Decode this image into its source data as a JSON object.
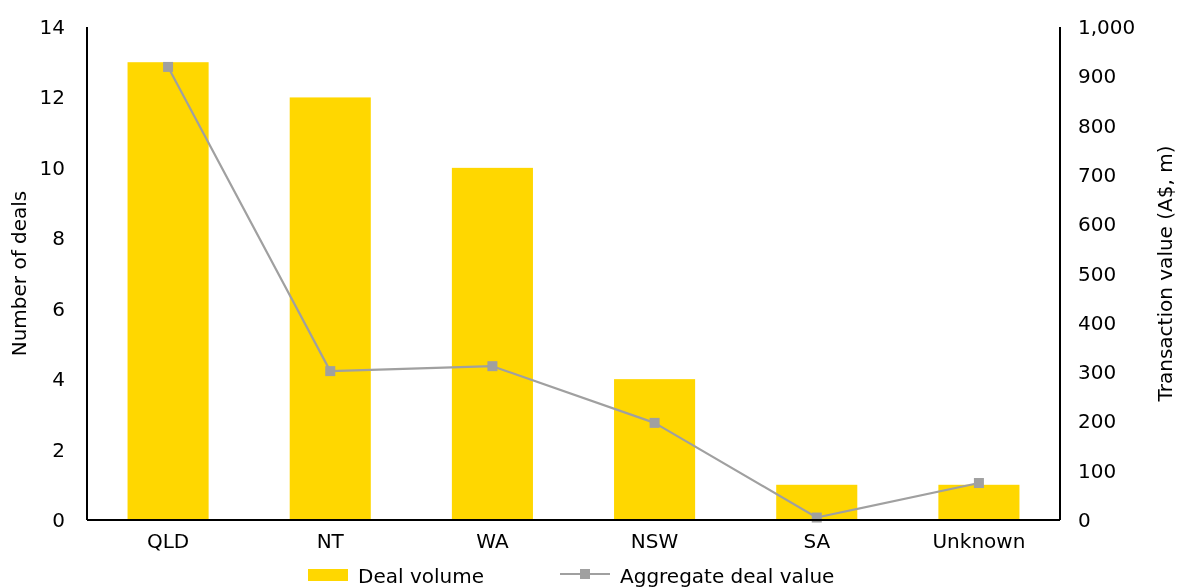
{
  "chart_data": {
    "type": "bar",
    "categories": [
      "QLD",
      "NT",
      "WA",
      "NSW",
      "SA",
      "Unknown"
    ],
    "ylabel": "Number of deals",
    "y2label": "Transaction value (A$, m)",
    "ylim": [
      0,
      14
    ],
    "yticks": [
      0,
      2,
      4,
      6,
      8,
      10,
      12,
      14
    ],
    "y2lim": [
      0,
      1000
    ],
    "y2ticks": [
      0,
      100,
      200,
      300,
      400,
      500,
      600,
      700,
      800,
      900,
      {
        "value": 1000,
        "label": "1,000"
      }
    ],
    "series": [
      {
        "name": "Deal volume",
        "color": "#ffd700",
        "values": [
          13,
          12,
          10,
          4,
          1,
          1
        ]
      },
      {
        "name": "Aggregate deal value",
        "type": "line",
        "axis": "y2",
        "color": "#a0a0a0",
        "marker": "square",
        "values": [
          919,
          302,
          312,
          197,
          5,
          75
        ]
      }
    ],
    "legend": "bottom",
    "grid": false
  }
}
